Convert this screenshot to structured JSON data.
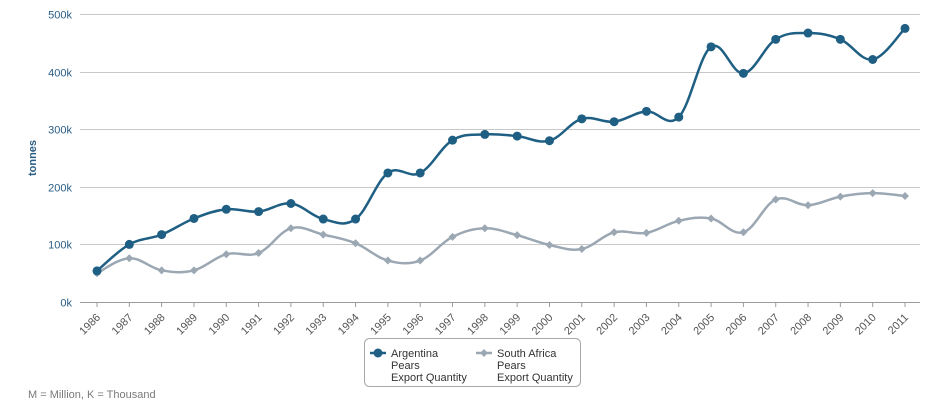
{
  "chart_data": {
    "type": "line",
    "ylabel": "tonnes",
    "ylim": [
      0,
      500000
    ],
    "y_ticks": [
      0,
      100000,
      200000,
      300000,
      400000,
      500000
    ],
    "y_tick_labels": [
      "0k",
      "100k",
      "200k",
      "300k",
      "400k",
      "500k"
    ],
    "grid": true,
    "smooth": true,
    "x": [
      "1986",
      "1987",
      "1988",
      "1989",
      "1990",
      "1991",
      "1992",
      "1993",
      "1994",
      "1995",
      "1996",
      "1997",
      "1998",
      "1999",
      "2000",
      "2001",
      "2002",
      "2003",
      "2004",
      "2005",
      "2006",
      "2007",
      "2008",
      "2009",
      "2010",
      "2011"
    ],
    "series": [
      {
        "name": "Argentina Pears Export Quantity",
        "legend_lines": [
          "Argentina",
          "Pears",
          "Export Quantity"
        ],
        "color": "#1f5f84",
        "marker": "circle",
        "values": [
          54000,
          100000,
          117000,
          145000,
          161000,
          157000,
          171000,
          144000,
          144000,
          224000,
          224000,
          281000,
          291000,
          288000,
          280000,
          318000,
          313000,
          331000,
          321000,
          443000,
          397000,
          456000,
          467000,
          456000,
          421000,
          475000
        ]
      },
      {
        "name": "South Africa Pears Export Quantity",
        "legend_lines": [
          "South Africa",
          "Pears",
          "Export Quantity"
        ],
        "color": "#9ba7b3",
        "marker": "diamond",
        "values": [
          50000,
          76000,
          55000,
          55000,
          83000,
          85000,
          128000,
          117000,
          102000,
          72000,
          72000,
          113000,
          128000,
          116000,
          99000,
          92000,
          121000,
          120000,
          141000,
          145000,
          121000,
          178000,
          168000,
          183000,
          189000,
          184000
        ]
      }
    ],
    "legend_position": "bottom-center"
  },
  "footnote": "M = Million, K = Thousand"
}
